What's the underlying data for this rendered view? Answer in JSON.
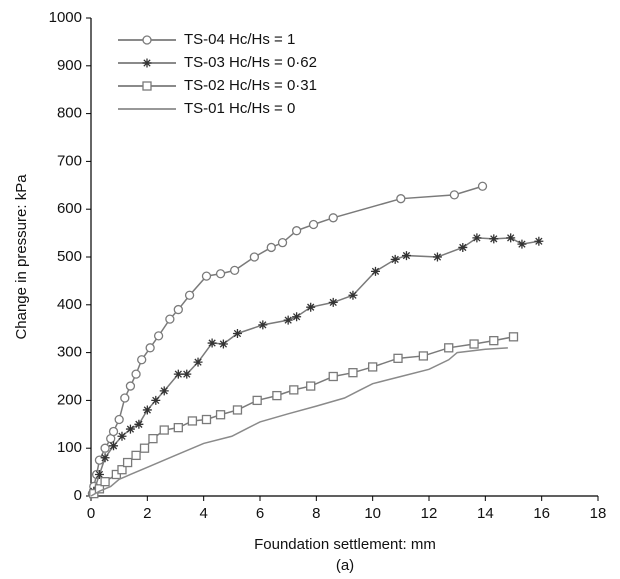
{
  "chart_data": {
    "type": "line",
    "x_label": "Foundation settlement: mm",
    "y_label": "Change in pressure: kPa",
    "caption": "(a)",
    "xlim": [
      0,
      18
    ],
    "xticks": [
      0,
      2,
      4,
      6,
      8,
      10,
      12,
      14,
      16,
      18
    ],
    "ylim": [
      0,
      1000
    ],
    "yticks": [
      0,
      100,
      200,
      300,
      400,
      500,
      600,
      700,
      800,
      900,
      1000
    ],
    "grid": false,
    "legend": "upper left",
    "series": [
      {
        "name": "TS-04 Hc/Hs = 1",
        "color": "#7a7a7a",
        "marker": "circle",
        "x": [
          0.05,
          0.1,
          0.2,
          0.3,
          0.5,
          0.7,
          0.8,
          1.0,
          1.2,
          1.4,
          1.6,
          1.8,
          2.1,
          2.4,
          2.8,
          3.1,
          3.5,
          4.1,
          4.6,
          5.1,
          5.8,
          6.4,
          6.8,
          7.3,
          7.9,
          8.6,
          11.0,
          12.9,
          13.9
        ],
        "values": [
          5,
          20,
          45,
          75,
          100,
          120,
          135,
          160,
          205,
          230,
          255,
          285,
          310,
          335,
          370,
          390,
          420,
          460,
          465,
          472,
          500,
          520,
          530,
          555,
          568,
          582,
          622,
          630,
          648
        ]
      },
      {
        "name": "TS-03 Hc/Hs = 0·62",
        "color": "#7a7a7a",
        "marker": "star",
        "x": [
          0.1,
          0.3,
          0.5,
          0.8,
          1.1,
          1.4,
          1.7,
          2.0,
          2.3,
          2.6,
          3.1,
          3.4,
          3.8,
          4.3,
          4.7,
          5.2,
          6.1,
          7.0,
          7.3,
          7.8,
          8.6,
          9.3,
          10.1,
          10.8,
          11.2,
          12.3,
          13.2,
          13.7,
          14.3,
          14.9,
          15.3,
          15.9
        ],
        "values": [
          10,
          45,
          80,
          105,
          125,
          140,
          150,
          180,
          200,
          220,
          255,
          255,
          280,
          320,
          318,
          340,
          358,
          368,
          375,
          395,
          405,
          420,
          470,
          495,
          503,
          500,
          520,
          540,
          538,
          540,
          527,
          533
        ]
      },
      {
        "name": "TS-02 Hc/Hs = 0·31",
        "color": "#7a7a7a",
        "marker": "square",
        "x": [
          0.1,
          0.3,
          0.5,
          0.9,
          1.1,
          1.3,
          1.6,
          1.9,
          2.2,
          2.6,
          3.1,
          3.6,
          4.1,
          4.6,
          5.2,
          5.9,
          6.6,
          7.2,
          7.8,
          8.6,
          9.3,
          10.0,
          10.9,
          11.8,
          12.7,
          13.6,
          14.3,
          15.0
        ],
        "values": [
          5,
          15,
          30,
          45,
          55,
          70,
          85,
          100,
          120,
          138,
          143,
          157,
          160,
          170,
          180,
          200,
          210,
          222,
          230,
          250,
          258,
          270,
          288,
          293,
          310,
          318,
          325,
          333
        ]
      },
      {
        "name": "TS-01 Hc/Hs = 0",
        "color": "#8a8a8a",
        "marker": "none",
        "x": [
          0,
          0.3,
          0.7,
          1.0,
          1.4,
          2.0,
          3.0,
          4.0,
          5.0,
          5.5,
          6.0,
          7.0,
          8.0,
          9.0,
          9.5,
          10.0,
          11.0,
          12.0,
          12.7,
          13.0,
          14.0,
          14.8
        ],
        "values": [
          0,
          10,
          20,
          35,
          45,
          60,
          85,
          110,
          125,
          140,
          155,
          172,
          188,
          205,
          220,
          235,
          250,
          265,
          285,
          300,
          307,
          310
        ]
      }
    ]
  }
}
